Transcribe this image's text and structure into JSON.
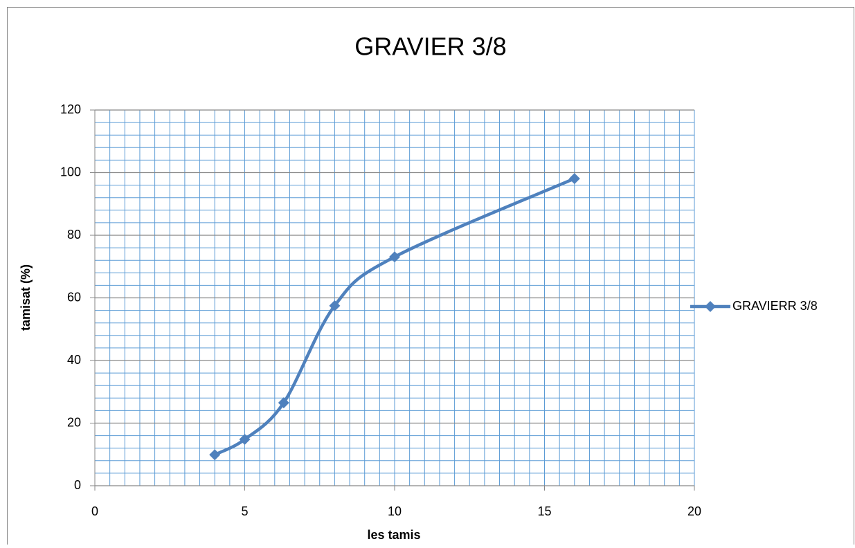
{
  "chart_data": {
    "type": "scatter",
    "title": "GRAVIER 3/8",
    "x_label": "les tamis",
    "y_label": "tamisat (%)",
    "series": [
      {
        "name": "GRAVIERR 3/8",
        "color": "#4f81bd",
        "x": [
          4,
          5,
          6.3,
          8,
          10,
          16
        ],
        "values": [
          9.9,
          14.8,
          26.5,
          57.5,
          73.1,
          98.1
        ]
      }
    ],
    "xlim": [
      0,
      20
    ],
    "xticks": [
      0,
      5,
      10,
      15,
      20
    ],
    "ylim": [
      0,
      120
    ],
    "yticks": [
      0,
      20,
      40,
      60,
      80,
      100,
      120
    ],
    "xminorticks": [
      0,
      0.5,
      1,
      1.5,
      2,
      2.5,
      3,
      3.5,
      4,
      4.5,
      5,
      5.5,
      6,
      6.5,
      7,
      7.5,
      8,
      8.5,
      9,
      9.5,
      10,
      10.5,
      11,
      11.5,
      12,
      12.5,
      13,
      13.5,
      14,
      14.5,
      15,
      15.5,
      16,
      16.5,
      17,
      17.5,
      18,
      18.5,
      19,
      19.5,
      20
    ],
    "yminorticks": [
      4,
      8,
      12,
      16,
      24,
      28,
      32,
      36,
      44,
      48,
      52,
      56,
      64,
      68,
      72,
      76,
      84,
      88,
      92,
      96,
      104,
      108,
      112,
      116
    ],
    "grid": true,
    "grid_color": "#5b9bd5",
    "major_grid_color": "#868686",
    "smooth": true,
    "legend": "right"
  }
}
